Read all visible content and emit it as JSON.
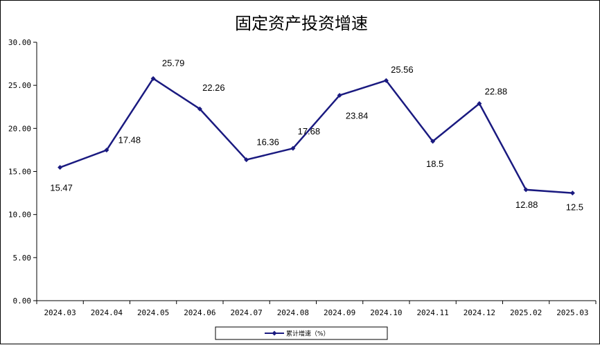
{
  "chart_data": {
    "type": "line",
    "title": "固定资产投资增速",
    "xlabel": "",
    "ylabel": "",
    "categories": [
      "2024.03",
      "2024.04",
      "2024.05",
      "2024.06",
      "2024.07",
      "2024.08",
      "2024.09",
      "2024.10",
      "2024.11",
      "2024.12",
      "2025.02",
      "2025.03"
    ],
    "y_tick_labels": [
      "0.00",
      "5.00",
      "10.00",
      "15.00",
      "20.00",
      "25.00",
      "30.00"
    ],
    "ylim": [
      0,
      30
    ],
    "series": [
      {
        "name": "累计增速（%）",
        "color": "#1a1a80",
        "values": [
          15.47,
          17.48,
          25.79,
          22.26,
          16.36,
          17.68,
          23.84,
          25.56,
          18.5,
          22.88,
          12.88,
          12.5
        ],
        "data_labels": [
          "15.47",
          "17.48",
          "25.79",
          "22.26",
          "16.36",
          "17.68",
          "23.84",
          "25.56",
          "18.5",
          "22.88",
          "12.88",
          "12.5"
        ]
      }
    ],
    "grid": false,
    "legend_position": "bottom"
  }
}
